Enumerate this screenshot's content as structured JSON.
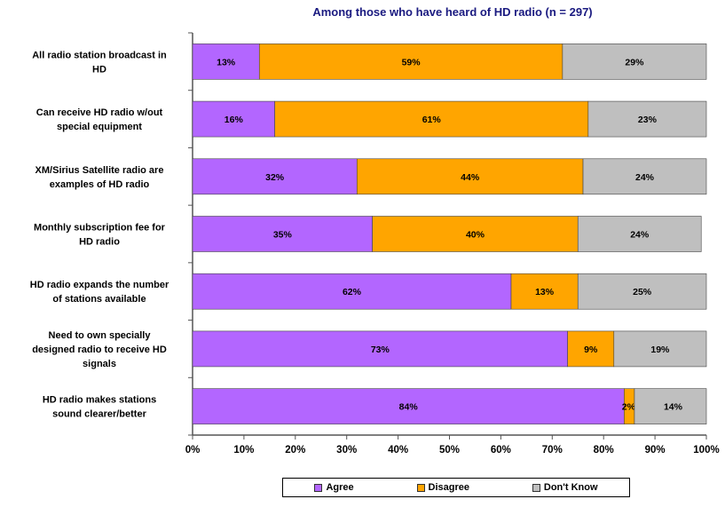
{
  "chart_data": {
    "type": "bar",
    "orientation": "horizontal",
    "stacked": true,
    "title": "Among those who have heard of HD radio (n = 297)",
    "categories": [
      [
        "All radio station broadcast in",
        "HD"
      ],
      [
        "Can receive HD radio w/out",
        "special equipment"
      ],
      [
        "XM/Sirius Satellite radio are",
        "examples of HD radio"
      ],
      [
        "Monthly subscription fee for",
        "HD radio"
      ],
      [
        "HD radio expands the number",
        "of stations available"
      ],
      [
        "Need to own specially",
        "designed radio to receive HD",
        "signals"
      ],
      [
        "HD radio makes stations",
        "sound clearer/better"
      ]
    ],
    "series": [
      {
        "name": "Agree",
        "color": "#b366ff",
        "values": [
          13,
          16,
          32,
          35,
          62,
          73,
          84
        ],
        "labels": [
          "13%",
          "16%",
          "32%",
          "35%",
          "62%",
          "73%",
          "84%"
        ]
      },
      {
        "name": "Disagree",
        "color": "#ffa500",
        "values": [
          59,
          61,
          44,
          40,
          13,
          9,
          2
        ],
        "labels": [
          "59%",
          "61%",
          "44%",
          "40%",
          "13%",
          "9%",
          "2%"
        ]
      },
      {
        "name": "Don't Know",
        "color": "#bfbfbf",
        "values": [
          29,
          23,
          24,
          24,
          25,
          19,
          14
        ],
        "labels": [
          "29%",
          "23%",
          "24%",
          "24%",
          "25%",
          "19%",
          "14%"
        ]
      }
    ],
    "xlim": [
      0,
      100
    ],
    "xticks": [
      "0%",
      "10%",
      "20%",
      "30%",
      "40%",
      "50%",
      "60%",
      "70%",
      "80%",
      "90%",
      "100%"
    ],
    "grid": false,
    "legend_position": "bottom"
  }
}
